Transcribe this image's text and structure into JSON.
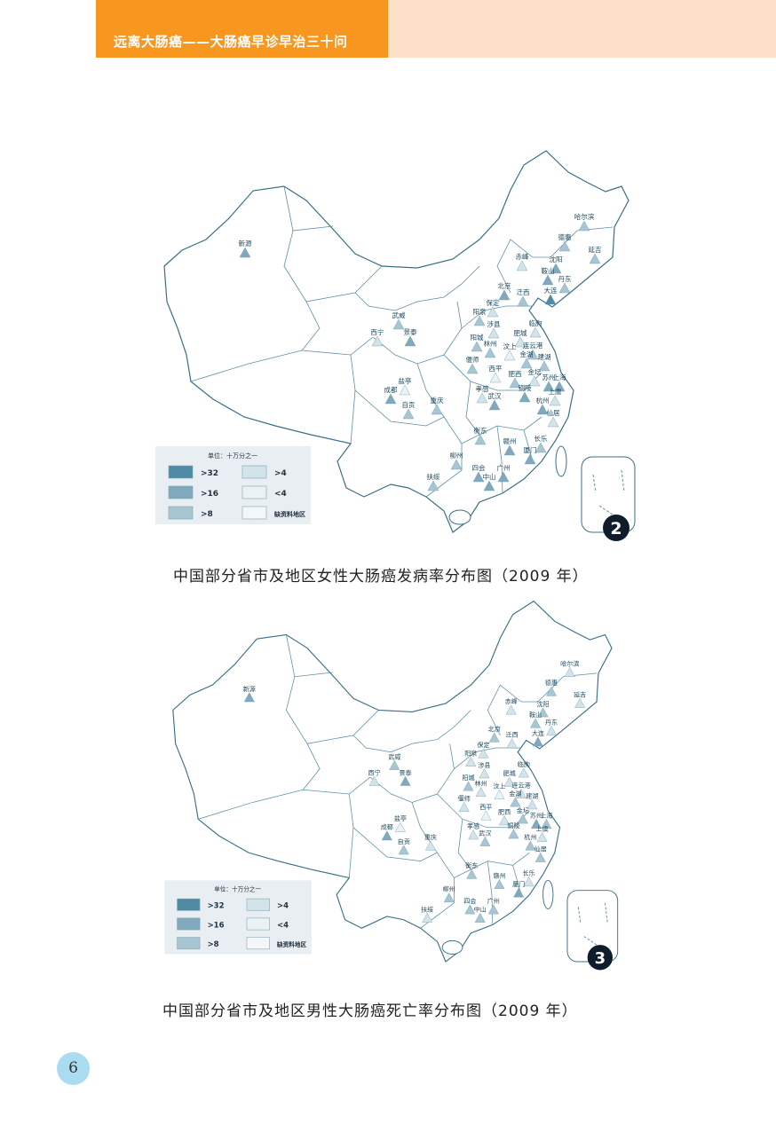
{
  "header": {
    "title": "远离大肠癌——大肠癌早诊早治三十问",
    "accent": "#f7971f",
    "band": "#fde0c8"
  },
  "legend": {
    "unit": "单位：十万分之一",
    "items": [
      {
        "label": ">32",
        "color": "#4f8aa5"
      },
      {
        "label": ">16",
        "color": "#80a9bd"
      },
      {
        "label": ">8",
        "color": "#a8c5d2"
      },
      {
        "label": ">4",
        "color": "#d3e3ea"
      },
      {
        "label": "<4",
        "color": "#eaf2f5"
      },
      {
        "label": "缺资料地区",
        "color": "#f3f7f9"
      }
    ]
  },
  "cities": [
    "新源",
    "哈尔滨",
    "德惠",
    "延吉",
    "赤峰",
    "沈阳",
    "鞍山",
    "丹东",
    "北京",
    "迁西",
    "大连",
    "武威",
    "西宁",
    "景泰",
    "保定",
    "阳泉",
    "涉县",
    "临朐",
    "肥城",
    "阳城",
    "林州",
    "汶上",
    "连云港",
    "金湖",
    "建湖",
    "偃师",
    "西平",
    "肥西",
    "金坛",
    "苏州",
    "上海",
    "成都",
    "盐亭",
    "自贡",
    "重庆",
    "孝感",
    "武汉",
    "铜陵",
    "上虞",
    "杭州",
    "仙居",
    "衡东",
    "赣州",
    "长乐",
    "厦门",
    "扶绥",
    "柳州",
    "四会",
    "中山",
    "广州"
  ],
  "maps": [
    {
      "badge": "2",
      "caption": "中国部分省市及地区女性大肠癌发病率分布图（2009 年）",
      "levels": [
        1,
        2,
        2,
        2,
        3,
        1,
        1,
        2,
        1,
        2,
        0,
        2,
        3,
        1,
        3,
        2,
        3,
        3,
        3,
        2,
        2,
        4,
        2,
        2,
        2,
        2,
        4,
        2,
        3,
        1,
        1,
        1,
        4,
        2,
        2,
        3,
        1,
        1,
        3,
        1,
        3,
        2,
        1,
        2,
        1,
        2,
        2,
        1,
        1,
        1
      ]
    },
    {
      "badge": "3",
      "caption": "中国部分省市及地区男性大肠癌死亡率分布图（2009 年）",
      "levels": [
        1,
        3,
        2,
        3,
        3,
        2,
        2,
        3,
        2,
        3,
        1,
        2,
        3,
        1,
        3,
        3,
        3,
        3,
        3,
        2,
        3,
        4,
        3,
        2,
        3,
        3,
        4,
        3,
        2,
        1,
        2,
        1,
        4,
        2,
        3,
        3,
        2,
        2,
        3,
        2,
        2,
        2,
        2,
        3,
        1,
        3,
        2,
        2,
        2,
        2
      ]
    }
  ],
  "page_number": "6"
}
